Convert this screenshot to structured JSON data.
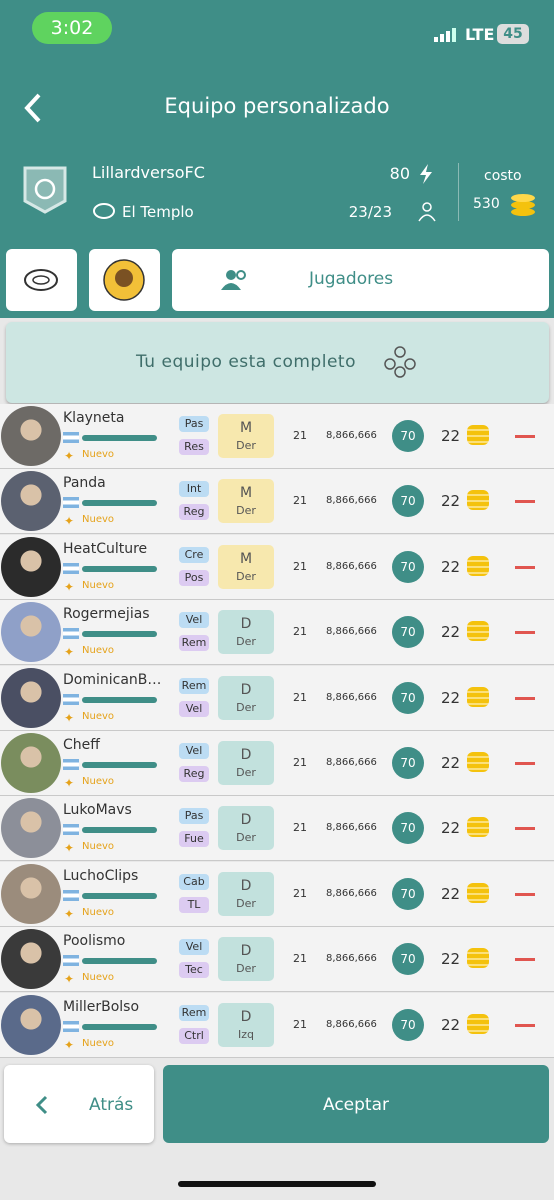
{
  "status_bar": {
    "time": "3:02",
    "network": "LTE",
    "battery": 45
  },
  "header": {
    "title": "Equipo personalizado"
  },
  "team": {
    "name": "LillardversoFC",
    "stadium": "El Templo",
    "energy": 80,
    "players_count": "23/23",
    "cost_label": "costo",
    "cost": 530
  },
  "tabs": {
    "players": "Jugadores"
  },
  "banner": "Tu equipo esta completo",
  "players": [
    {
      "name": "Klayneta",
      "tag1": "Pas",
      "tag2": "Res",
      "position": "M",
      "side": "Der",
      "age": 21,
      "value": "8,866,666",
      "rating": 70,
      "price": 22,
      "status": "Nuevo"
    },
    {
      "name": "Panda",
      "tag1": "Int",
      "tag2": "Reg",
      "position": "M",
      "side": "Der",
      "age": 21,
      "value": "8,866,666",
      "rating": 70,
      "price": 22,
      "status": "Nuevo"
    },
    {
      "name": "HeatCulture",
      "tag1": "Cre",
      "tag2": "Pos",
      "position": "M",
      "side": "Der",
      "age": 21,
      "value": "8,866,666",
      "rating": 70,
      "price": 22,
      "status": "Nuevo"
    },
    {
      "name": "Rogermejias",
      "tag1": "Vel",
      "tag2": "Rem",
      "position": "D",
      "side": "Der",
      "age": 21,
      "value": "8,866,666",
      "rating": 70,
      "price": 22,
      "status": "Nuevo"
    },
    {
      "name": "DominicanB…",
      "tag1": "Rem",
      "tag2": "Vel",
      "position": "D",
      "side": "Der",
      "age": 21,
      "value": "8,866,666",
      "rating": 70,
      "price": 22,
      "status": "Nuevo"
    },
    {
      "name": "Cheff",
      "tag1": "Vel",
      "tag2": "Reg",
      "position": "D",
      "side": "Der",
      "age": 21,
      "value": "8,866,666",
      "rating": 70,
      "price": 22,
      "status": "Nuevo"
    },
    {
      "name": "LukoMavs",
      "tag1": "Pas",
      "tag2": "Fue",
      "position": "D",
      "side": "Der",
      "age": 21,
      "value": "8,866,666",
      "rating": 70,
      "price": 22,
      "status": "Nuevo"
    },
    {
      "name": "LuchoClips",
      "tag1": "Cab",
      "tag2": "TL",
      "position": "D",
      "side": "Der",
      "age": 21,
      "value": "8,866,666",
      "rating": 70,
      "price": 22,
      "status": "Nuevo"
    },
    {
      "name": "Poolismo",
      "tag1": "Vel",
      "tag2": "Tec",
      "position": "D",
      "side": "Der",
      "age": 21,
      "value": "8,866,666",
      "rating": 70,
      "price": 22,
      "status": "Nuevo"
    },
    {
      "name": "MillerBolso",
      "tag1": "Rem",
      "tag2": "Ctrl",
      "position": "D",
      "side": "Izq",
      "age": 21,
      "value": "8,866,666",
      "rating": 70,
      "price": 22,
      "status": "Nuevo"
    }
  ],
  "footer": {
    "back": "Atrás",
    "accept": "Aceptar"
  }
}
